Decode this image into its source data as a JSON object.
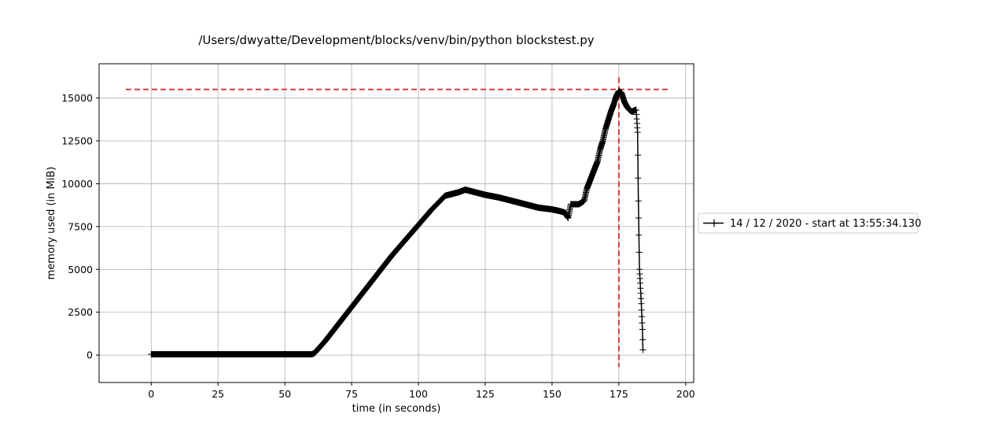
{
  "chart_data": {
    "type": "line",
    "title": "/Users/dwyatte/Development/blocks/venv/bin/python blockstest.py",
    "xlabel": "time (in seconds)",
    "ylabel": "memory used (in MiB)",
    "xlim": [
      -19.5,
      203
    ],
    "ylim": [
      -1600,
      17000
    ],
    "x_ticks": [
      0,
      25,
      50,
      75,
      100,
      125,
      150,
      175,
      200
    ],
    "y_ticks": [
      0,
      2500,
      5000,
      7500,
      10000,
      12500,
      15000
    ],
    "grid": true,
    "legend_placement": "right, outside plot",
    "series": [
      {
        "name": "14 / 12 / 2020 - start at 13:55:34.130",
        "color": "#000000",
        "marker": "plus",
        "x": [
          0,
          10,
          20,
          30,
          40,
          50,
          60,
          61,
          65,
          70,
          75,
          80,
          85,
          90,
          95,
          100,
          105,
          110,
          115,
          117.5,
          120,
          125,
          130,
          135,
          140,
          145,
          150,
          153,
          155,
          156,
          157,
          160,
          162,
          163,
          165,
          167,
          168,
          169,
          170,
          171,
          172,
          173,
          174,
          175,
          176,
          177,
          178,
          179,
          180,
          181,
          181.5,
          182,
          182.3,
          182.7,
          183,
          183.4,
          183.8,
          184
        ],
        "y": [
          50,
          50,
          50,
          50,
          50,
          50,
          50,
          100,
          800,
          1800,
          2800,
          3800,
          4800,
          5800,
          6700,
          7600,
          8500,
          9300,
          9500,
          9650,
          9550,
          9350,
          9200,
          9000,
          8800,
          8600,
          8500,
          8400,
          8300,
          8000,
          8800,
          8800,
          9000,
          9700,
          10500,
          11300,
          12000,
          12500,
          13200,
          13700,
          14200,
          14600,
          15100,
          15400,
          15300,
          14800,
          14500,
          14300,
          14200,
          14300,
          14300,
          13000,
          9000,
          5000,
          4200,
          3000,
          1500,
          300
        ]
      }
    ],
    "annotations": [
      {
        "type": "hline",
        "y": 15500,
        "x_range": [
          -9.5,
          193.5
        ],
        "color": "#d62728",
        "style": "dashed"
      },
      {
        "type": "vline",
        "x": 175,
        "y_range": [
          -700,
          16200
        ],
        "color": "#d62728",
        "style": "dashed"
      }
    ]
  }
}
